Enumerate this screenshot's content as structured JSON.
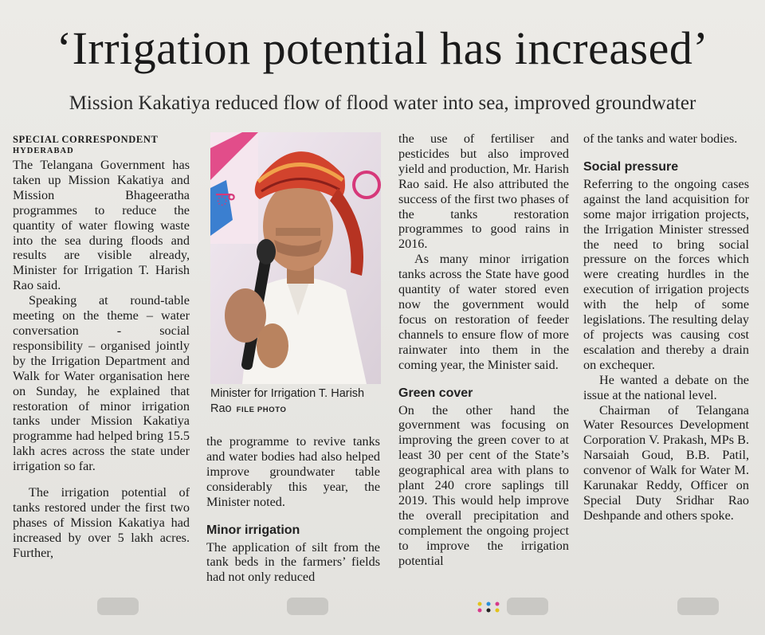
{
  "headline": "‘Irrigation potential has increased’",
  "deck": "Mission Kakatiya reduced flow of flood water into sea, improved groundwater",
  "byline": "SPECIAL CORRESPONDENT",
  "dateline": "HYDERABAD",
  "col1": {
    "p1": "The Telangana Government has taken up Mission Kakatiya and Mission Bhageeratha programmes to reduce the quantity of water flowing waste into the sea during floods and results are visible already, Minister for Irrigation T. Harish Rao said.",
    "p2": "Speaking at round-table meeting on the theme – water conversation - social responsibility – organised jointly by the Irrigation Department and Walk for Water organisation here on Sunday, he explained that restoration of minor irrigation tanks under Mission Kakatiya programme had helped bring 15.5 lakh acres across the state under irrigation so far.",
    "p3": "The irrigation potential of tanks restored under the first two phases of Mission Kakatiya had increased by over 5 lakh acres. Further,"
  },
  "photo": {
    "caption": "Minister for Irrigation T. Harish Rao",
    "credit": "FILE PHOTO"
  },
  "col2": {
    "p1": "the programme to revive tanks and water bodies had also helped improve groundwater table considerably this year, the Minister noted.",
    "subhead": "Minor irrigation",
    "p2": "The application of silt from the tank beds in the farmers’ fields had not only reduced"
  },
  "col3": {
    "p1": "the use of fertiliser and pesticides but also improved yield and production, Mr. Harish Rao said. He also attributed the success of the first two phases of the tanks restoration programmes to good rains in 2016.",
    "p2": "As many minor irrigation tanks across the State have good quantity of water stored even now the government would focus on restoration of feeder channels to ensure flow of more rainwater into them in the coming year, the Minister said.",
    "subhead": "Green cover",
    "p3": "On the other hand the government was focusing on improving the green cover to at least 30 per cent of the State’s geographical area with plans to plant 240 crore saplings till 2019. This would help improve the overall precipitation and complement the ongoing project to improve the irrigation potential"
  },
  "col4": {
    "p1": "of the tanks and water bodies.",
    "subhead": "Social pressure",
    "p2": "Referring to the ongoing cases against the land acquisition for some major irrigation projects, the Irrigation Minister stressed the need to bring social pressure on the forces which were creating hurdles in the execution of irrigation projects with the help of some legislations. The resulting delay of projects was causing cost escalation and thereby a drain on exchequer.",
    "p3": "He wanted a debate on the issue at the national level.",
    "p4": "Chairman of Telangana Water Resources Development Corporation V. Prakash, MPs B. Narsaiah Goud, B.B. Patil, convenor of Walk for Water M. Karunakar Reddy, Officer on Special Duty Sridhar Rao Deshpande and others spoke."
  }
}
